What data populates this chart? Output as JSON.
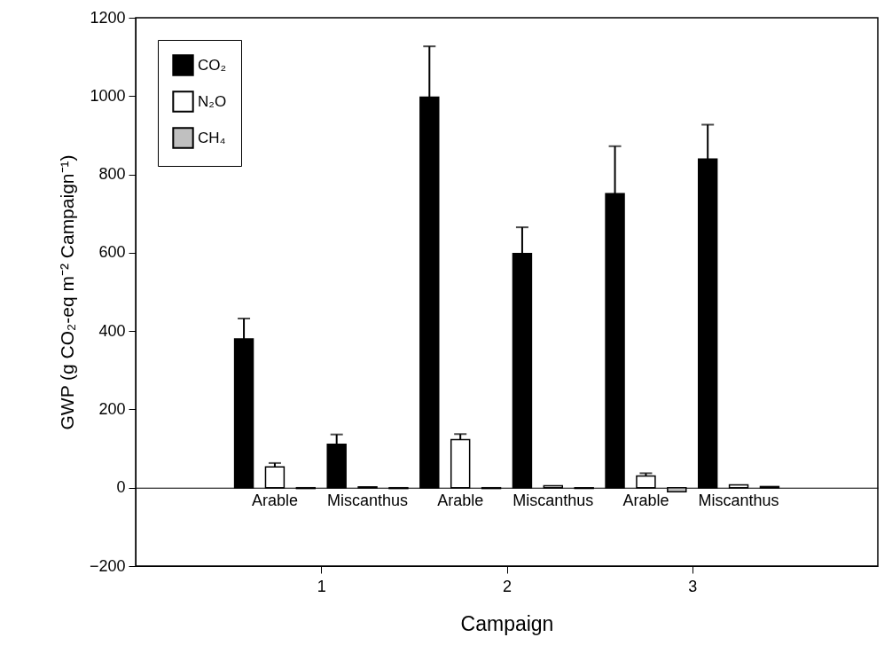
{
  "chart_data": {
    "type": "bar",
    "xlabel": "Campaign",
    "ylabel": "GWP (g CO₂-eq m⁻² Campaign⁻¹)",
    "categories": [
      "Arable",
      "Miscanthus",
      "Arable",
      "Miscanthus",
      "Arable",
      "Miscanthus"
    ],
    "series": [
      {
        "name": "CO₂",
        "color": "#000000",
        "values": [
          380,
          111,
          997,
          598,
          751,
          839
        ],
        "errors": [
          [
            380,
            432
          ],
          [
            111,
            136
          ],
          [
            997,
            1127
          ],
          [
            598,
            665
          ],
          [
            751,
            872
          ],
          [
            839,
            927
          ]
        ]
      },
      {
        "name": "N₂O",
        "color": "#ffffff",
        "values": [
          53,
          2,
          123,
          5,
          30,
          7
        ],
        "errors": [
          [
            53,
            63
          ],
          null,
          [
            123,
            137
          ],
          null,
          [
            30,
            37
          ],
          null
        ]
      },
      {
        "name": "CH₄",
        "color": "#c0c0c0",
        "values": [
          -2,
          -2,
          -2,
          -2,
          -10,
          3
        ]
      }
    ],
    "annotations": [
      "1",
      "2",
      "3"
    ],
    "ylim": [
      -200,
      1200
    ],
    "yticks": [
      -200,
      0,
      200,
      400,
      600,
      800,
      1000,
      1200
    ],
    "grid": false,
    "legend": "top left"
  }
}
